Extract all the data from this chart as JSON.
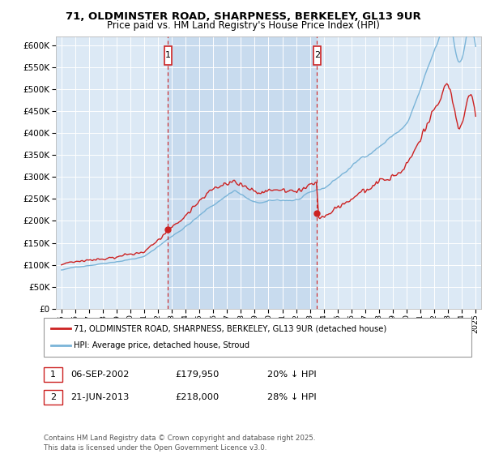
{
  "title_line1": "71, OLDMINSTER ROAD, SHARPNESS, BERKELEY, GL13 9UR",
  "title_line2": "Price paid vs. HM Land Registry's House Price Index (HPI)",
  "hpi_color": "#7ab4d8",
  "price_color": "#cc2222",
  "marker1_date_x": 2002.68,
  "marker1_price": 179950,
  "marker1_label": "1",
  "marker1_text": "06-SEP-2002",
  "marker1_price_text": "£179,950",
  "marker1_pct": "20% ↓ HPI",
  "marker2_date_x": 2013.47,
  "marker2_price": 218000,
  "marker2_label": "2",
  "marker2_text": "21-JUN-2013",
  "marker2_price_text": "£218,000",
  "marker2_pct": "28% ↓ HPI",
  "legend_line1": "71, OLDMINSTER ROAD, SHARPNESS, BERKELEY, GL13 9UR (detached house)",
  "legend_line2": "HPI: Average price, detached house, Stroud",
  "footer": "Contains HM Land Registry data © Crown copyright and database right 2025.\nThis data is licensed under the Open Government Licence v3.0.",
  "ylim": [
    0,
    620000
  ],
  "xlim_start": 1994.6,
  "xlim_end": 2025.4,
  "background_color": "#dce9f5",
  "shade_color": "#c8dbee"
}
